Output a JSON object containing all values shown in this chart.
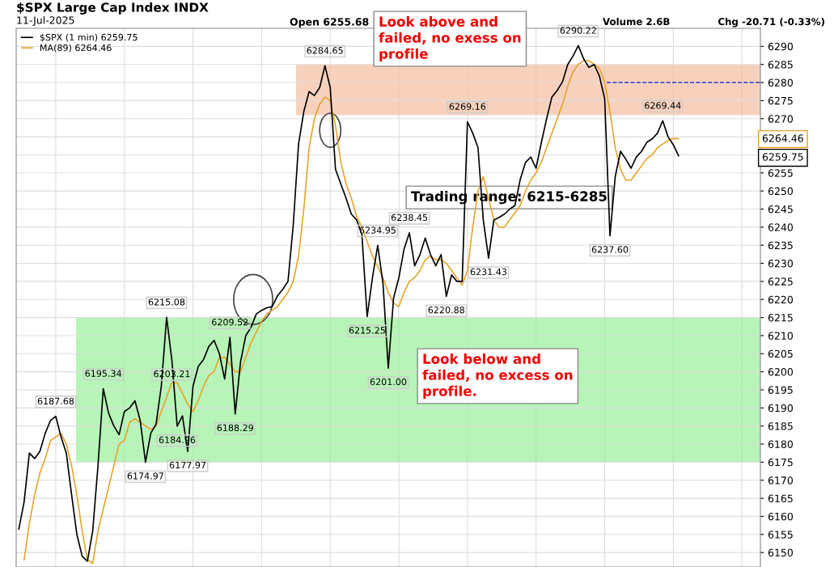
{
  "chart_data": {
    "type": "line",
    "title": "$SPX Large Cap Index INDX",
    "subtitle": "11-Jul-2025",
    "categories": [
      null,
      null,
      null,
      null,
      null,
      null,
      null,
      null,
      null,
      null,
      null,
      null,
      null,
      null,
      null,
      null,
      null,
      null,
      null,
      null,
      null,
      null,
      null,
      null,
      null,
      null,
      null,
      null,
      null,
      null,
      null,
      null,
      null,
      null,
      null,
      null,
      null,
      null,
      null,
      null,
      null,
      null,
      null,
      null,
      null,
      null,
      null,
      null,
      null,
      null,
      null,
      null,
      null,
      null,
      null,
      null,
      null,
      null,
      null,
      null,
      null,
      null,
      null,
      null,
      null,
      null,
      null,
      null,
      null,
      null,
      null,
      null,
      null,
      null,
      null,
      null,
      null,
      null,
      null,
      null,
      null,
      null,
      null,
      null,
      null,
      null,
      null,
      null,
      null,
      null,
      null,
      null,
      null,
      null,
      null,
      null,
      null,
      null,
      null,
      null,
      null,
      null,
      null,
      null,
      null,
      null,
      null,
      null,
      null,
      null,
      null,
      null,
      null,
      null,
      null,
      null,
      null,
      null,
      null,
      null,
      null,
      null,
      null,
      null,
      null,
      null,
      null,
      null,
      null,
      null,
      null,
      null,
      null,
      null,
      null,
      null,
      null,
      null,
      null,
      null,
      null
    ],
    "series": [
      {
        "name": "$SPX (1 min) 6259.75",
        "color": "#000000",
        "values": [
          6156.5,
          6164,
          6177.5,
          6176,
          6178,
          6183,
          6186.5,
          6187.68,
          6182,
          6177.5,
          6166,
          6155,
          6149,
          6147.6,
          6156,
          6174,
          6195.34,
          6188.6,
          6185,
          6182.6,
          6189,
          6190,
          6192,
          6186.5,
          6174.97,
          6183,
          6185.5,
          6196,
          6215.08,
          6203.21,
          6184.96,
          6187.8,
          6177.97,
          6196,
          6201.5,
          6203.4,
          6207,
          6208.7,
          6205,
          6198,
          6209.52,
          6188.29,
          6202.7,
          6210,
          6212.3,
          6216,
          6217,
          6217.7,
          6218,
          6221,
          6222.8,
          6225,
          6240.7,
          6263,
          6272,
          6277.5,
          6276.4,
          6278.6,
          6284.65,
          6278.6,
          6256,
          6252,
          6248,
          6243.6,
          6242,
          6238,
          6215.25,
          6226,
          6234.95,
          6224.4,
          6201,
          6220.4,
          6226,
          6234,
          6238.45,
          6229.3,
          6232.4,
          6237,
          6232.4,
          6229.3,
          6232.4,
          6220.88,
          6226.8,
          6225,
          6225,
          6269.16,
          6266,
          6262,
          6242,
          6231.43,
          6242,
          6242.7,
          6243.6,
          6245,
          6246,
          6253.2,
          6257.9,
          6259.4,
          6256.3,
          6263.4,
          6270,
          6276,
          6277.8,
          6280.2,
          6285,
          6287.3,
          6290.22,
          6286.6,
          6284.2,
          6285,
          6281.8,
          6275.5,
          6237.6,
          6254,
          6261,
          6258.8,
          6256.3,
          6259.4,
          6261,
          6263.5,
          6264.4,
          6266,
          6269.44,
          6265,
          6262.8,
          6259.75,
          null,
          null,
          null,
          null,
          null,
          null,
          null,
          null,
          null,
          null,
          null,
          null,
          null,
          null,
          null
        ]
      },
      {
        "name": "MA(89) 6264.46",
        "color": "#e8a020",
        "values": [
          null,
          6148,
          6158,
          6166,
          6172,
          6176,
          6181,
          6182,
          6183,
          6180,
          6174,
          6166,
          6156,
          6148,
          6147,
          6156,
          6162,
          6168,
          6174,
          6180,
          6181,
          6186,
          6187,
          6186,
          6185,
          6184,
          6185,
          6189,
          6193,
          6197,
          6197,
          6194,
          6191,
          6189,
          6192,
          6196,
          6199,
          6200,
          6204,
          6204,
          6202,
          6200,
          6200,
          6204,
          6208,
          6211,
          6214,
          6216,
          6217,
          6218,
          6220,
          6222,
          6225,
          6232,
          6245,
          6262,
          6270,
          6274,
          6276,
          6275,
          6268,
          6258,
          6252,
          6248,
          6243,
          6240,
          6236,
          6232,
          6229,
          6226,
          6222,
          6219,
          6218,
          6222,
          6225,
          6226,
          6228,
          6231,
          6232,
          6231,
          6231,
          6230,
          6228,
          6226,
          6224,
          6228,
          6240,
          6250,
          6254,
          6248,
          6242,
          6240,
          6240,
          6242,
          6244,
          6246,
          6250,
          6253,
          6255,
          6258,
          6262,
          6266,
          6270,
          6274,
          6279,
          6283,
          6285,
          6286,
          6286,
          6285,
          6284,
          6280,
          6272,
          6262,
          6256,
          6253,
          6253,
          6255,
          6257,
          6259,
          6260,
          6262,
          6263,
          6264,
          6264.5,
          6264.46,
          null,
          null,
          null,
          null,
          null,
          null,
          null,
          null,
          null,
          null,
          null,
          null,
          null,
          null,
          null
        ]
      }
    ],
    "ylim": [
      6146,
      6295
    ],
    "yticks": [
      6150,
      6155,
      6160,
      6165,
      6170,
      6175,
      6180,
      6185,
      6190,
      6195,
      6200,
      6205,
      6210,
      6215,
      6220,
      6225,
      6230,
      6235,
      6240,
      6245,
      6250,
      6255,
      {
        "value": 6260,
        "label": null
      },
      {
        "value": 6265,
        "label": null
      },
      6270,
      6275,
      6280,
      6285,
      6290
    ],
    "grid": true,
    "legend": "top left",
    "marker": "none",
    "line_style": "solid",
    "tick_labels": "y",
    "bands": [
      {
        "axis": "y",
        "from": 6175,
        "to": 6215,
        "color": "#90ee90"
      },
      {
        "axis": "y",
        "from": 6271,
        "to": 6285,
        "color": "#f4b99a"
      }
    ],
    "ref_lines": [
      {
        "axis": "y",
        "value": 6280,
        "color": "#3333cc",
        "line_style": "dashed"
      }
    ],
    "annotations": [
      {
        "text": "6187.68",
        "y": 6187.68
      },
      {
        "text": "6195.34",
        "y": 6195.34
      },
      {
        "text": "6174.97",
        "y": 6174.97
      },
      {
        "text": "6215.08",
        "y": 6215.08
      },
      {
        "text": "6203.21",
        "y": 6203.21
      },
      {
        "text": "6184.96",
        "y": 6184.96
      },
      {
        "text": "6177.97",
        "y": 6177.97
      },
      {
        "text": "6209.52",
        "y": 6209.52
      },
      {
        "text": "6188.29",
        "y": 6188.29
      },
      {
        "text": "6284.65",
        "y": 6284.65
      },
      {
        "text": "6215.25",
        "y": 6215.25
      },
      {
        "text": "6234.95",
        "y": 6234.95
      },
      {
        "text": "6201.00",
        "y": 6201.0
      },
      {
        "text": "6238.45",
        "y": 6238.45
      },
      {
        "text": "6220.88",
        "y": 6220.88
      },
      {
        "text": "6269.16",
        "y": 6269.16
      },
      {
        "text": "6231.43",
        "y": 6231.43
      },
      {
        "text": "6290.22",
        "y": 6290.22
      },
      {
        "text": "6237.60",
        "y": 6237.6
      },
      {
        "text": "6269.44",
        "y": 6269.44
      },
      "6264.46",
      "6259.75",
      "Open 6255.68",
      "Volume 2.6B",
      "Chg -20.71 (-0.33%)",
      "Look above and failed, no exess on profile",
      "Look below and failed, no excess on profile.",
      "Trading range: 6215-6285"
    ]
  }
}
